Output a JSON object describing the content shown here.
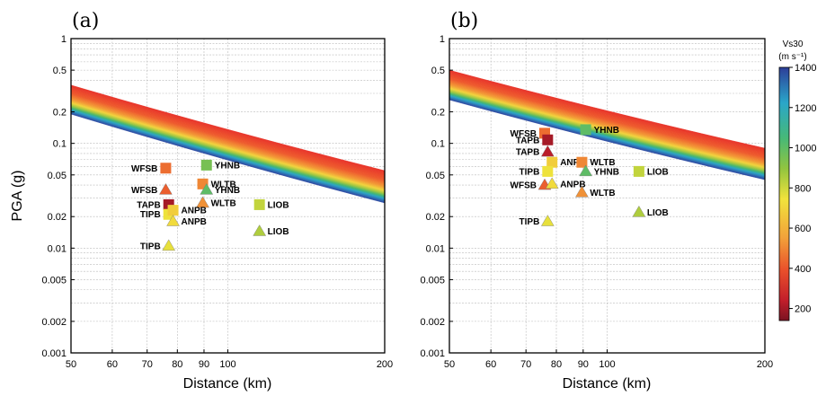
{
  "chart_data": [
    {
      "panel": "(a)",
      "type": "scatter",
      "xlabel": "Distance (km)",
      "ylabel": "PGA (g)",
      "x_scale": "log",
      "y_scale": "log",
      "xlim": [
        50,
        200
      ],
      "ylim": [
        0.001,
        1
      ],
      "x_ticks": [
        "50",
        "60",
        "70",
        "80",
        "90",
        "100",
        "200"
      ],
      "y_ticks": [
        "0.001",
        "0.002",
        "0.005",
        "0.01",
        "0.02",
        "0.05",
        "0.1",
        "0.2",
        "0.5",
        "1"
      ],
      "band": {
        "top": [
          [
            50,
            0.36
          ],
          [
            200,
            0.055
          ]
        ],
        "bottom": [
          [
            50,
            0.19
          ],
          [
            200,
            0.027
          ]
        ]
      },
      "points": [
        {
          "label": "WFSB",
          "marker": "square",
          "x": 76.0,
          "y": 0.058,
          "vs30": 450
        },
        {
          "label": "YHNB",
          "marker": "square",
          "x": 91.0,
          "y": 0.062,
          "vs30": 950
        },
        {
          "label": "WLTB",
          "marker": "square",
          "x": 89.5,
          "y": 0.041,
          "vs30": 500
        },
        {
          "label": "WFSB",
          "marker": "triangle",
          "x": 76.0,
          "y": 0.036,
          "vs30": 420
        },
        {
          "label": "YHNB",
          "marker": "triangle",
          "x": 91.0,
          "y": 0.036,
          "vs30": 1000
        },
        {
          "label": "WLTB",
          "marker": "triangle",
          "x": 89.5,
          "y": 0.027,
          "vs30": 520
        },
        {
          "label": "TAPB",
          "marker": "square",
          "x": 77.0,
          "y": 0.026,
          "vs30": 200
        },
        {
          "label": "TIPB",
          "marker": "square",
          "x": 77.0,
          "y": 0.021,
          "vs30": 750
        },
        {
          "label": "ANPB",
          "marker": "square",
          "x": 78.5,
          "y": 0.023,
          "vs30": 680
        },
        {
          "label": "ANPB",
          "marker": "triangle",
          "x": 78.5,
          "y": 0.018,
          "vs30": 720
        },
        {
          "label": "LIOB",
          "marker": "square",
          "x": 115.0,
          "y": 0.026,
          "vs30": 820
        },
        {
          "label": "LIOB",
          "marker": "triangle",
          "x": 115.0,
          "y": 0.0145,
          "vs30": 850
        },
        {
          "label": "TIPB",
          "marker": "triangle",
          "x": 77.0,
          "y": 0.0105,
          "vs30": 760
        }
      ]
    },
    {
      "panel": "(b)",
      "type": "scatter",
      "xlabel": "Distance (km)",
      "ylabel": "",
      "x_scale": "log",
      "y_scale": "log",
      "xlim": [
        50,
        200
      ],
      "ylim": [
        0.001,
        1
      ],
      "x_ticks": [
        "50",
        "60",
        "70",
        "80",
        "90",
        "100",
        "200"
      ],
      "y_ticks": [
        "0.001",
        "0.002",
        "0.005",
        "0.01",
        "0.02",
        "0.05",
        "0.1",
        "0.2",
        "0.5",
        "1"
      ],
      "band": {
        "top": [
          [
            50,
            0.5
          ],
          [
            200,
            0.09
          ]
        ],
        "bottom": [
          [
            50,
            0.26
          ],
          [
            200,
            0.045
          ]
        ]
      },
      "points": [
        {
          "label": "YHNB",
          "marker": "square",
          "x": 91.0,
          "y": 0.135,
          "vs30": 1000
        },
        {
          "label": "WFSB",
          "marker": "square",
          "x": 76.0,
          "y": 0.125,
          "vs30": 450
        },
        {
          "label": "TAPB",
          "marker": "square",
          "x": 77.0,
          "y": 0.108,
          "vs30": 200
        },
        {
          "label": "TAPB",
          "marker": "triangle",
          "x": 77.0,
          "y": 0.083,
          "vs30": 230
        },
        {
          "label": "ANPB",
          "marker": "square",
          "x": 78.5,
          "y": 0.066,
          "vs30": 680
        },
        {
          "label": "WLTB",
          "marker": "square",
          "x": 89.5,
          "y": 0.066,
          "vs30": 500
        },
        {
          "label": "TIPB",
          "marker": "square",
          "x": 77.0,
          "y": 0.054,
          "vs30": 750
        },
        {
          "label": "YHNB",
          "marker": "triangle",
          "x": 91.0,
          "y": 0.054,
          "vs30": 1000
        },
        {
          "label": "LIOB",
          "marker": "square",
          "x": 115.0,
          "y": 0.054,
          "vs30": 820
        },
        {
          "label": "WFSB",
          "marker": "triangle",
          "x": 76.0,
          "y": 0.04,
          "vs30": 420
        },
        {
          "label": "ANPB",
          "marker": "triangle",
          "x": 78.5,
          "y": 0.041,
          "vs30": 720
        },
        {
          "label": "WLTB",
          "marker": "triangle",
          "x": 89.5,
          "y": 0.034,
          "vs30": 520
        },
        {
          "label": "LIOB",
          "marker": "triangle",
          "x": 115.0,
          "y": 0.022,
          "vs30": 850
        },
        {
          "label": "TIPB",
          "marker": "triangle",
          "x": 77.0,
          "y": 0.018,
          "vs30": 760
        }
      ]
    }
  ],
  "colorbar": {
    "title_line1": "Vs30",
    "title_line2": "(m s⁻¹)",
    "ticks": [
      "1400",
      "1200",
      "1000",
      "800",
      "600",
      "400",
      "200"
    ],
    "range": [
      140,
      1400
    ],
    "stops": [
      "#2d3e98",
      "#2aa6c9",
      "#47b977",
      "#92c43f",
      "#f1e33c",
      "#f2a33a",
      "#e9502b",
      "#c21e2b",
      "#7a1322"
    ]
  }
}
